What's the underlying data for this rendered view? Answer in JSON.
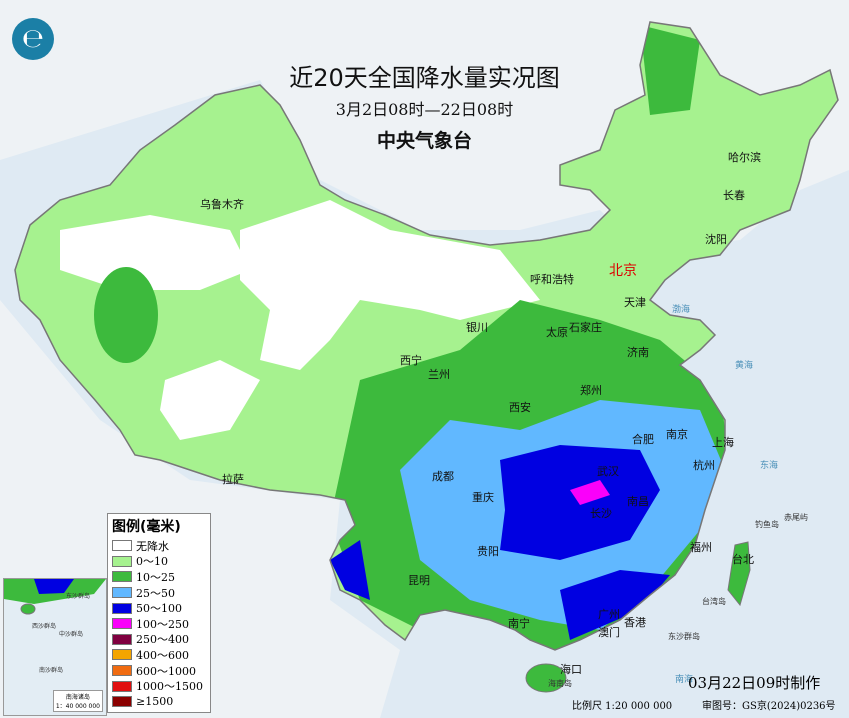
{
  "title": "近20天全国降水量实况图",
  "period": "3月2日08时—22日08时",
  "agency": "中央气象台",
  "logo_icon": "cma-logo-icon",
  "legend": {
    "title": "图例(毫米)",
    "items": [
      {
        "label": "无降水",
        "color": "#ffffff"
      },
      {
        "label": "0～10",
        "color": "#a6f28f"
      },
      {
        "label": "10～25",
        "color": "#3dba3d"
      },
      {
        "label": "25～50",
        "color": "#61b8ff"
      },
      {
        "label": "50～100",
        "color": "#0000e1"
      },
      {
        "label": "100～250",
        "color": "#fa00fa"
      },
      {
        "label": "250～400",
        "color": "#800040"
      },
      {
        "label": "400～600",
        "color": "#f4a500"
      },
      {
        "label": "600～1000",
        "color": "#f06b10"
      },
      {
        "label": "1000～1500",
        "color": "#e11010"
      },
      {
        "label": "≥1500",
        "color": "#8b0000"
      }
    ]
  },
  "cities": {
    "urumqi": "乌鲁木齐",
    "harbin": "哈尔滨",
    "changchun": "长春",
    "shenyang": "沈阳",
    "beijing": "北京",
    "hohhot": "呼和浩特",
    "tianjin": "天津",
    "shijiazhuang": "石家庄",
    "yinchuan": "银川",
    "taiyuan": "太原",
    "jinan": "济南",
    "xining": "西宁",
    "lanzhou": "兰州",
    "zhengzhou": "郑州",
    "xian": "西安",
    "hefei": "合肥",
    "nanjing": "南京",
    "shanghai": "上海",
    "hangzhou": "杭州",
    "wuhan": "武汉",
    "changsha": "长沙",
    "nanchang": "南昌",
    "chengdu": "成都",
    "chongqing": "重庆",
    "lhasa": "拉萨",
    "guiyang": "贵阳",
    "fuzhou": "福州",
    "taipei": "台北",
    "kunming": "昆明",
    "nanning": "南宁",
    "guangzhou": "广州",
    "hongkong": "香港",
    "macau": "澳门",
    "haikou": "海口"
  },
  "islands": {
    "taiwan": "台湾岛",
    "dongsha": "东沙群岛",
    "hainan": "海南岛",
    "diaoyu": "钓鱼岛",
    "chiwei": "赤尾屿"
  },
  "seas": {
    "bohai": "渤海",
    "huanghai": "黄海",
    "donghai": "东海",
    "nanhai": "南海"
  },
  "inset": {
    "title": "南海诸岛",
    "scale": "1：40 000 000",
    "labels": [
      "西沙群岛",
      "中沙群岛",
      "南沙群岛",
      "东沙群岛"
    ]
  },
  "made_time": "03月22日09时制作",
  "scale": "比例尺 1:20 000 000",
  "approval": "审图号：GS京(2024)0236号"
}
